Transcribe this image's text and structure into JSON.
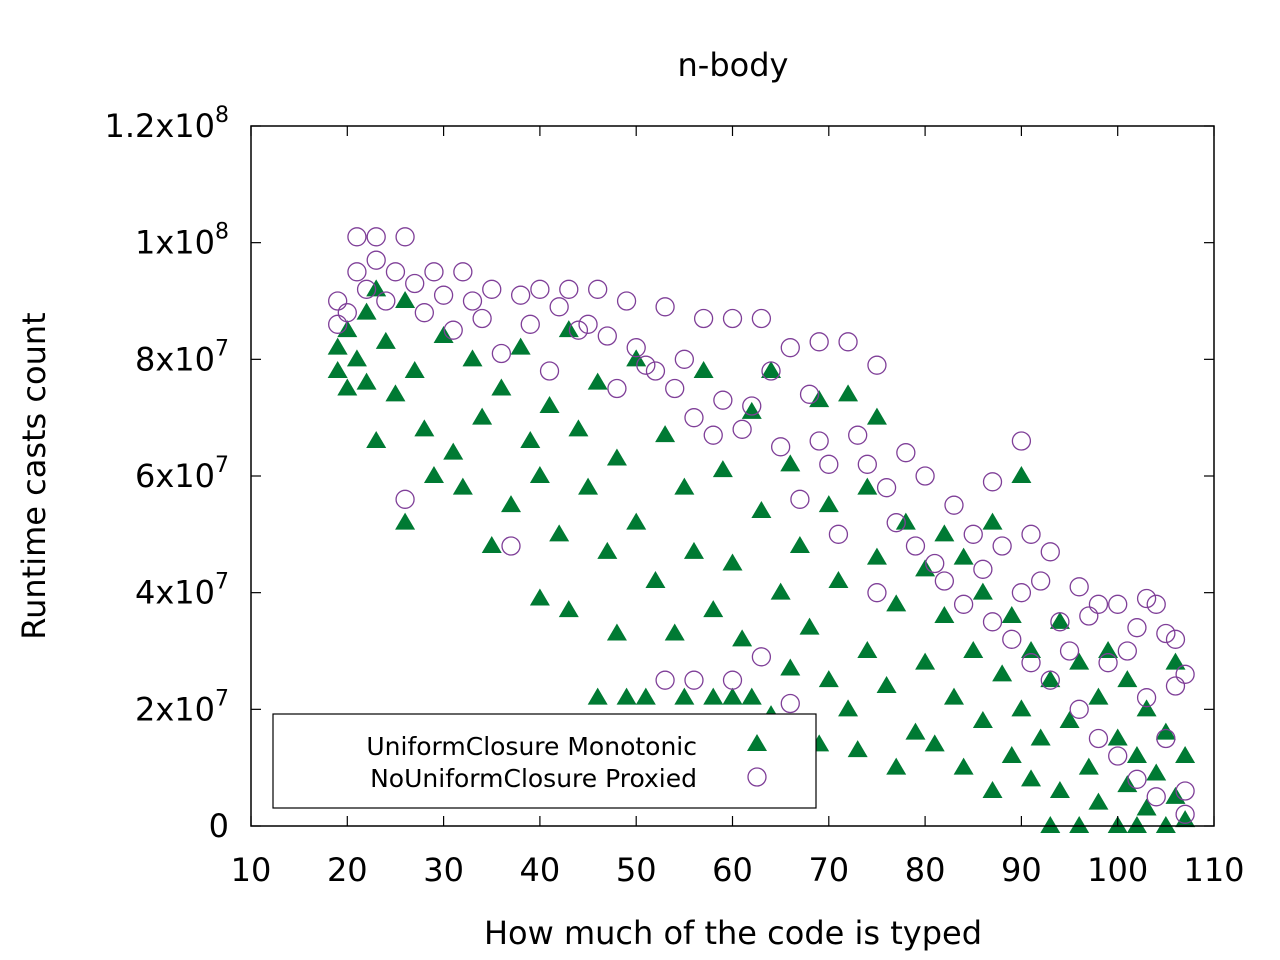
{
  "chart_data": {
    "type": "scatter",
    "title": "n-body",
    "xlabel": "How much of the code is typed",
    "ylabel": "Runtime casts count",
    "xlim": [
      10,
      110
    ],
    "ylim": [
      0,
      120000000
    ],
    "x_ticks": [
      10,
      20,
      30,
      40,
      50,
      60,
      70,
      80,
      90,
      100,
      110
    ],
    "x_tick_labels": [
      "10",
      "20",
      "30",
      "40",
      "50",
      "60",
      "70",
      "80",
      "90",
      "100",
      "110"
    ],
    "y_ticks": [
      {
        "value": 0,
        "mantissa": "0",
        "exp": ""
      },
      {
        "value": 20000000,
        "mantissa": "2x10",
        "exp": "7"
      },
      {
        "value": 40000000,
        "mantissa": "4x10",
        "exp": "7"
      },
      {
        "value": 60000000,
        "mantissa": "6x10",
        "exp": "7"
      },
      {
        "value": 80000000,
        "mantissa": "8x10",
        "exp": "7"
      },
      {
        "value": 100000000,
        "mantissa": "1x10",
        "exp": "8"
      },
      {
        "value": 120000000,
        "mantissa": "1.2x10",
        "exp": "8"
      }
    ],
    "grid": false,
    "legend_position": "bottom-left",
    "series": [
      {
        "name": "UniformClosure Monotonic",
        "marker": "filled-triangle",
        "color": "#007a33",
        "points": [
          [
            19,
            82000000
          ],
          [
            19,
            78000000
          ],
          [
            20,
            75000000
          ],
          [
            20,
            85000000
          ],
          [
            21,
            80000000
          ],
          [
            22,
            88000000
          ],
          [
            22,
            76000000
          ],
          [
            23,
            92000000
          ],
          [
            23,
            66000000
          ],
          [
            24,
            83000000
          ],
          [
            25,
            74000000
          ],
          [
            26,
            52000000
          ],
          [
            26,
            90000000
          ],
          [
            27,
            78000000
          ],
          [
            28,
            68000000
          ],
          [
            29,
            60000000
          ],
          [
            30,
            84000000
          ],
          [
            31,
            64000000
          ],
          [
            32,
            58000000
          ],
          [
            33,
            80000000
          ],
          [
            34,
            70000000
          ],
          [
            35,
            48000000
          ],
          [
            36,
            75000000
          ],
          [
            37,
            55000000
          ],
          [
            38,
            82000000
          ],
          [
            39,
            66000000
          ],
          [
            40,
            39000000
          ],
          [
            40,
            60000000
          ],
          [
            41,
            72000000
          ],
          [
            42,
            50000000
          ],
          [
            43,
            37000000
          ],
          [
            43,
            85000000
          ],
          [
            44,
            68000000
          ],
          [
            45,
            58000000
          ],
          [
            46,
            22000000
          ],
          [
            46,
            76000000
          ],
          [
            47,
            47000000
          ],
          [
            48,
            63000000
          ],
          [
            48,
            33000000
          ],
          [
            49,
            22000000
          ],
          [
            50,
            52000000
          ],
          [
            50,
            80000000
          ],
          [
            51,
            22000000
          ],
          [
            52,
            42000000
          ],
          [
            53,
            67000000
          ],
          [
            54,
            33000000
          ],
          [
            55,
            58000000
          ],
          [
            55,
            22000000
          ],
          [
            56,
            47000000
          ],
          [
            57,
            78000000
          ],
          [
            58,
            37000000
          ],
          [
            58,
            22000000
          ],
          [
            59,
            61000000
          ],
          [
            60,
            45000000
          ],
          [
            60,
            22000000
          ],
          [
            61,
            32000000
          ],
          [
            62,
            71000000
          ],
          [
            62,
            22000000
          ],
          [
            63,
            54000000
          ],
          [
            64,
            78000000
          ],
          [
            64,
            19000000
          ],
          [
            65,
            40000000
          ],
          [
            66,
            62000000
          ],
          [
            66,
            27000000
          ],
          [
            67,
            48000000
          ],
          [
            68,
            34000000
          ],
          [
            69,
            73000000
          ],
          [
            69,
            14000000
          ],
          [
            70,
            55000000
          ],
          [
            70,
            25000000
          ],
          [
            71,
            42000000
          ],
          [
            72,
            74000000
          ],
          [
            72,
            20000000
          ],
          [
            73,
            13000000
          ],
          [
            74,
            58000000
          ],
          [
            74,
            30000000
          ],
          [
            75,
            46000000
          ],
          [
            75,
            70000000
          ],
          [
            76,
            24000000
          ],
          [
            77,
            38000000
          ],
          [
            77,
            10000000
          ],
          [
            78,
            52000000
          ],
          [
            79,
            16000000
          ],
          [
            80,
            44000000
          ],
          [
            80,
            28000000
          ],
          [
            81,
            14000000
          ],
          [
            82,
            50000000
          ],
          [
            82,
            36000000
          ],
          [
            83,
            22000000
          ],
          [
            84,
            46000000
          ],
          [
            84,
            10000000
          ],
          [
            85,
            30000000
          ],
          [
            86,
            40000000
          ],
          [
            86,
            18000000
          ],
          [
            87,
            6000000
          ],
          [
            87,
            52000000
          ],
          [
            88,
            26000000
          ],
          [
            89,
            36000000
          ],
          [
            89,
            12000000
          ],
          [
            90,
            60000000
          ],
          [
            90,
            20000000
          ],
          [
            91,
            30000000
          ],
          [
            91,
            8000000
          ],
          [
            92,
            15000000
          ],
          [
            93,
            0
          ],
          [
            93,
            25000000
          ],
          [
            94,
            35000000
          ],
          [
            94,
            6000000
          ],
          [
            95,
            18000000
          ],
          [
            96,
            0
          ],
          [
            96,
            28000000
          ],
          [
            97,
            10000000
          ],
          [
            98,
            22000000
          ],
          [
            98,
            4000000
          ],
          [
            99,
            30000000
          ],
          [
            100,
            0
          ],
          [
            100,
            15000000
          ],
          [
            101,
            7000000
          ],
          [
            101,
            25000000
          ],
          [
            102,
            0
          ],
          [
            102,
            12000000
          ],
          [
            103,
            20000000
          ],
          [
            103,
            3000000
          ],
          [
            104,
            9000000
          ],
          [
            105,
            0
          ],
          [
            105,
            16000000
          ],
          [
            106,
            5000000
          ],
          [
            106,
            28000000
          ],
          [
            107,
            12000000
          ],
          [
            107,
            1000000
          ]
        ]
      },
      {
        "name": "NoUniformClosure Proxied",
        "marker": "open-circle",
        "color": "#7f3f98",
        "points": [
          [
            19,
            90000000
          ],
          [
            19,
            86000000
          ],
          [
            20,
            88000000
          ],
          [
            21,
            101000000
          ],
          [
            21,
            95000000
          ],
          [
            22,
            92000000
          ],
          [
            23,
            101000000
          ],
          [
            23,
            97000000
          ],
          [
            24,
            90000000
          ],
          [
            25,
            95000000
          ],
          [
            26,
            101000000
          ],
          [
            26,
            56000000
          ],
          [
            27,
            93000000
          ],
          [
            28,
            88000000
          ],
          [
            29,
            95000000
          ],
          [
            30,
            91000000
          ],
          [
            31,
            85000000
          ],
          [
            32,
            95000000
          ],
          [
            33,
            90000000
          ],
          [
            34,
            87000000
          ],
          [
            35,
            92000000
          ],
          [
            36,
            81000000
          ],
          [
            37,
            48000000
          ],
          [
            38,
            91000000
          ],
          [
            39,
            86000000
          ],
          [
            40,
            92000000
          ],
          [
            41,
            78000000
          ],
          [
            42,
            89000000
          ],
          [
            43,
            92000000
          ],
          [
            44,
            85000000
          ],
          [
            45,
            86000000
          ],
          [
            46,
            92000000
          ],
          [
            47,
            84000000
          ],
          [
            48,
            75000000
          ],
          [
            49,
            90000000
          ],
          [
            50,
            82000000
          ],
          [
            51,
            79000000
          ],
          [
            52,
            78000000
          ],
          [
            53,
            89000000
          ],
          [
            53,
            25000000
          ],
          [
            54,
            75000000
          ],
          [
            55,
            80000000
          ],
          [
            56,
            70000000
          ],
          [
            56,
            25000000
          ],
          [
            57,
            87000000
          ],
          [
            58,
            67000000
          ],
          [
            59,
            73000000
          ],
          [
            60,
            87000000
          ],
          [
            60,
            25000000
          ],
          [
            61,
            68000000
          ],
          [
            62,
            72000000
          ],
          [
            63,
            87000000
          ],
          [
            63,
            29000000
          ],
          [
            64,
            78000000
          ],
          [
            65,
            65000000
          ],
          [
            66,
            82000000
          ],
          [
            66,
            21000000
          ],
          [
            67,
            56000000
          ],
          [
            68,
            74000000
          ],
          [
            69,
            83000000
          ],
          [
            69,
            66000000
          ],
          [
            70,
            62000000
          ],
          [
            71,
            50000000
          ],
          [
            72,
            83000000
          ],
          [
            73,
            67000000
          ],
          [
            74,
            62000000
          ],
          [
            75,
            79000000
          ],
          [
            75,
            40000000
          ],
          [
            76,
            58000000
          ],
          [
            77,
            52000000
          ],
          [
            78,
            64000000
          ],
          [
            79,
            48000000
          ],
          [
            80,
            60000000
          ],
          [
            81,
            45000000
          ],
          [
            82,
            42000000
          ],
          [
            83,
            55000000
          ],
          [
            84,
            38000000
          ],
          [
            85,
            50000000
          ],
          [
            86,
            44000000
          ],
          [
            87,
            59000000
          ],
          [
            87,
            35000000
          ],
          [
            88,
            48000000
          ],
          [
            89,
            32000000
          ],
          [
            90,
            66000000
          ],
          [
            90,
            40000000
          ],
          [
            91,
            50000000
          ],
          [
            91,
            28000000
          ],
          [
            92,
            42000000
          ],
          [
            93,
            47000000
          ],
          [
            93,
            25000000
          ],
          [
            94,
            35000000
          ],
          [
            95,
            30000000
          ],
          [
            96,
            41000000
          ],
          [
            96,
            20000000
          ],
          [
            97,
            36000000
          ],
          [
            98,
            38000000
          ],
          [
            98,
            15000000
          ],
          [
            99,
            28000000
          ],
          [
            100,
            38000000
          ],
          [
            100,
            12000000
          ],
          [
            101,
            30000000
          ],
          [
            102,
            34000000
          ],
          [
            102,
            8000000
          ],
          [
            103,
            39000000
          ],
          [
            103,
            22000000
          ],
          [
            104,
            38000000
          ],
          [
            104,
            5000000
          ],
          [
            105,
            33000000
          ],
          [
            105,
            15000000
          ],
          [
            106,
            32000000
          ],
          [
            106,
            24000000
          ],
          [
            107,
            26000000
          ],
          [
            107,
            6000000
          ],
          [
            107,
            2000000
          ]
        ]
      }
    ]
  }
}
